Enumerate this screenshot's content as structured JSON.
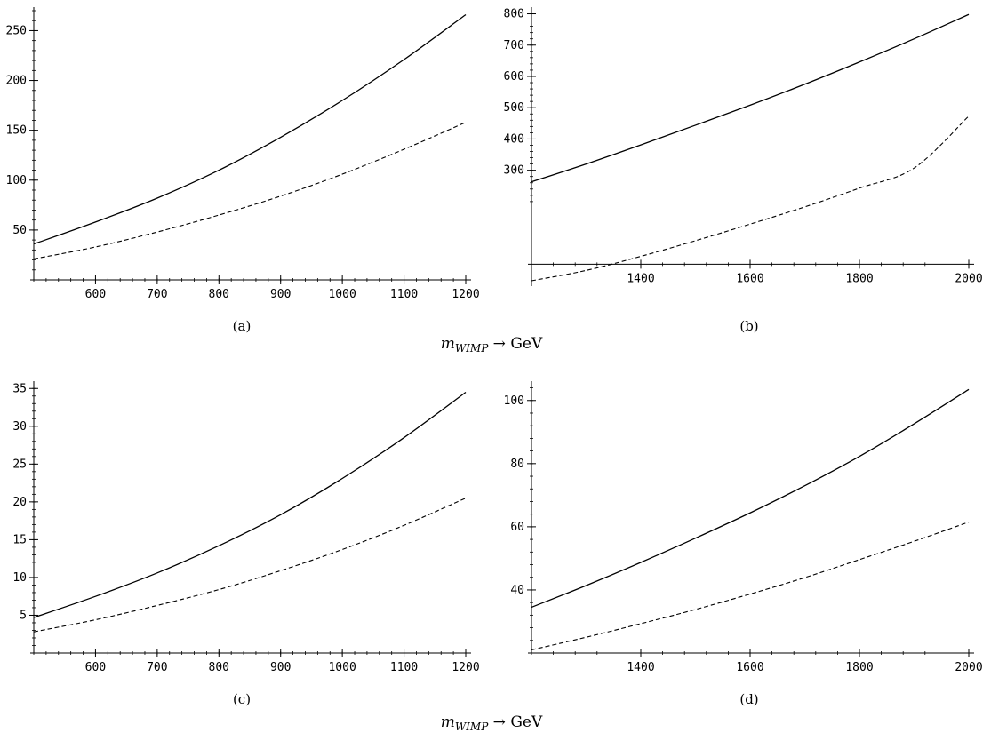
{
  "figure": {
    "xlabel_top": "m",
    "xlabel_sub": "WIMP",
    "xlabel_rest": " → GeV"
  },
  "chart_data": [
    {
      "type": "line",
      "caption": "(a)",
      "xlim": [
        500,
        1200
      ],
      "ylim": [
        0,
        270
      ],
      "xticks": [
        600,
        700,
        800,
        900,
        1000,
        1100,
        1200
      ],
      "yticks": [
        50,
        100,
        150,
        200,
        250
      ],
      "x": [
        500,
        600,
        700,
        800,
        900,
        1000,
        1100,
        1200
      ],
      "series": [
        {
          "style": "solid",
          "values": [
            36,
            58,
            82,
            110,
            143,
            180,
            221,
            266
          ]
        },
        {
          "style": "dashed",
          "values": [
            21,
            33,
            48,
            65,
            84,
            106,
            131,
            158
          ]
        }
      ]
    },
    {
      "type": "line",
      "caption": "(b)",
      "xlim": [
        1200,
        2000
      ],
      "ylim": [
        -70,
        810
      ],
      "xticks": [
        1400,
        1600,
        1800,
        2000
      ],
      "yticks": [
        300,
        400,
        500,
        600,
        700,
        800
      ],
      "x": [
        1200,
        1300,
        1400,
        1500,
        1600,
        1700,
        1800,
        1900,
        2000
      ],
      "series": [
        {
          "style": "solid",
          "values": [
            263,
            320,
            381,
            444,
            508,
            575,
            646,
            720,
            798
          ]
        },
        {
          "style": "dashed",
          "values": [
            -53,
            -20,
            25,
            75,
            128,
            183,
            243,
            307,
            473
          ]
        }
      ]
    },
    {
      "type": "line",
      "caption": "(c)",
      "xlim": [
        500,
        1200
      ],
      "ylim": [
        0,
        35.5
      ],
      "xticks": [
        600,
        700,
        800,
        900,
        1000,
        1100,
        1200
      ],
      "yticks": [
        5,
        10,
        15,
        20,
        25,
        30,
        35
      ],
      "x": [
        500,
        600,
        700,
        800,
        900,
        1000,
        1100,
        1200
      ],
      "series": [
        {
          "style": "solid",
          "values": [
            4.7,
            7.5,
            10.6,
            14.2,
            18.3,
            23.1,
            28.5,
            34.5
          ]
        },
        {
          "style": "dashed",
          "values": [
            2.8,
            4.4,
            6.3,
            8.4,
            10.9,
            13.7,
            16.9,
            20.5
          ]
        }
      ]
    },
    {
      "type": "line",
      "caption": "(d)",
      "xlim": [
        1200,
        2000
      ],
      "ylim": [
        20,
        105
      ],
      "xticks": [
        1400,
        1600,
        1800,
        2000
      ],
      "yticks": [
        40,
        60,
        80,
        100
      ],
      "x": [
        1200,
        1300,
        1400,
        1500,
        1600,
        1700,
        1800,
        1900,
        2000
      ],
      "series": [
        {
          "style": "solid",
          "values": [
            34.5,
            41.4,
            48.7,
            56.4,
            64.4,
            73.0,
            82.3,
            92.6,
            103.5
          ]
        },
        {
          "style": "dashed",
          "values": [
            21.0,
            25.0,
            29.3,
            33.8,
            38.7,
            43.9,
            49.6,
            55.4,
            61.5
          ]
        }
      ]
    }
  ]
}
